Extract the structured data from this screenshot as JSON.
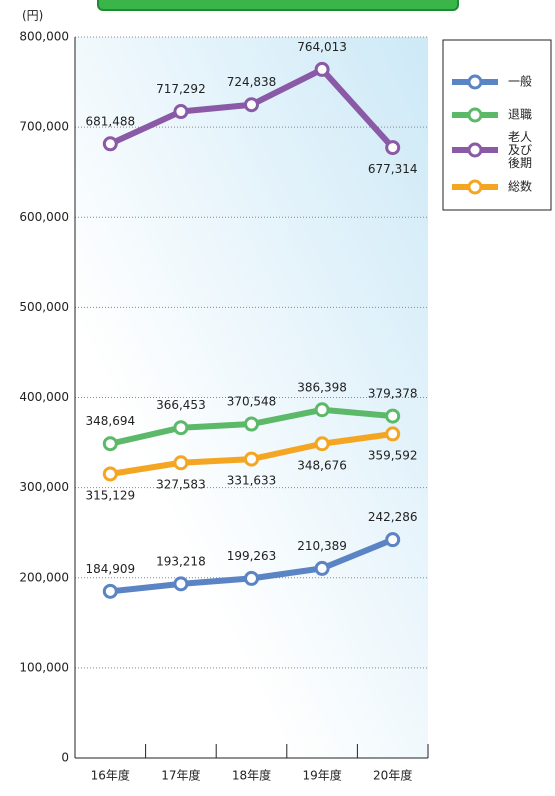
{
  "chart_data": {
    "type": "line",
    "y_unit": "(円)",
    "categories": [
      "16年度",
      "17年度",
      "18年度",
      "19年度",
      "20年度"
    ],
    "series": [
      {
        "name": "一般",
        "color": "#5b84c4",
        "values": [
          184909,
          193218,
          199263,
          210389,
          242286
        ],
        "value_labels": [
          "184,909",
          "193,218",
          "199,263",
          "210,389",
          "242,286"
        ]
      },
      {
        "name": "退職",
        "color": "#5cb96a",
        "values": [
          348694,
          366453,
          370548,
          386398,
          379378
        ],
        "value_labels": [
          "348,694",
          "366,453",
          "370,548",
          "386,398",
          "379,378"
        ]
      },
      {
        "name": "老人及び後期",
        "color": "#8a5aa6",
        "values": [
          681488,
          717292,
          724838,
          764013,
          677314
        ],
        "value_labels": [
          "681,488",
          "717,292",
          "724,838",
          "764,013",
          "677,314"
        ]
      },
      {
        "name": "総数",
        "color": "#f4a623",
        "values": [
          315129,
          327583,
          331633,
          348676,
          359592
        ],
        "value_labels": [
          "315,129",
          "327,583",
          "331,633",
          "348,676",
          "359,592"
        ]
      }
    ],
    "ylim": [
      0,
      800000
    ],
    "yticks": [
      0,
      {
        "value": 100000,
        "label": "100,000"
      },
      {
        "value": 200000,
        "label": "200,000"
      },
      {
        "value": 300000,
        "label": "300,000"
      },
      {
        "value": 400000,
        "label": "400,000"
      },
      {
        "value": 500000,
        "label": "500,000"
      },
      {
        "value": 600000,
        "label": "600,000"
      },
      {
        "value": 700000,
        "label": "700,000"
      },
      {
        "value": 800000,
        "label": "800,000"
      }
    ],
    "grid": true,
    "legend": "upper right"
  }
}
